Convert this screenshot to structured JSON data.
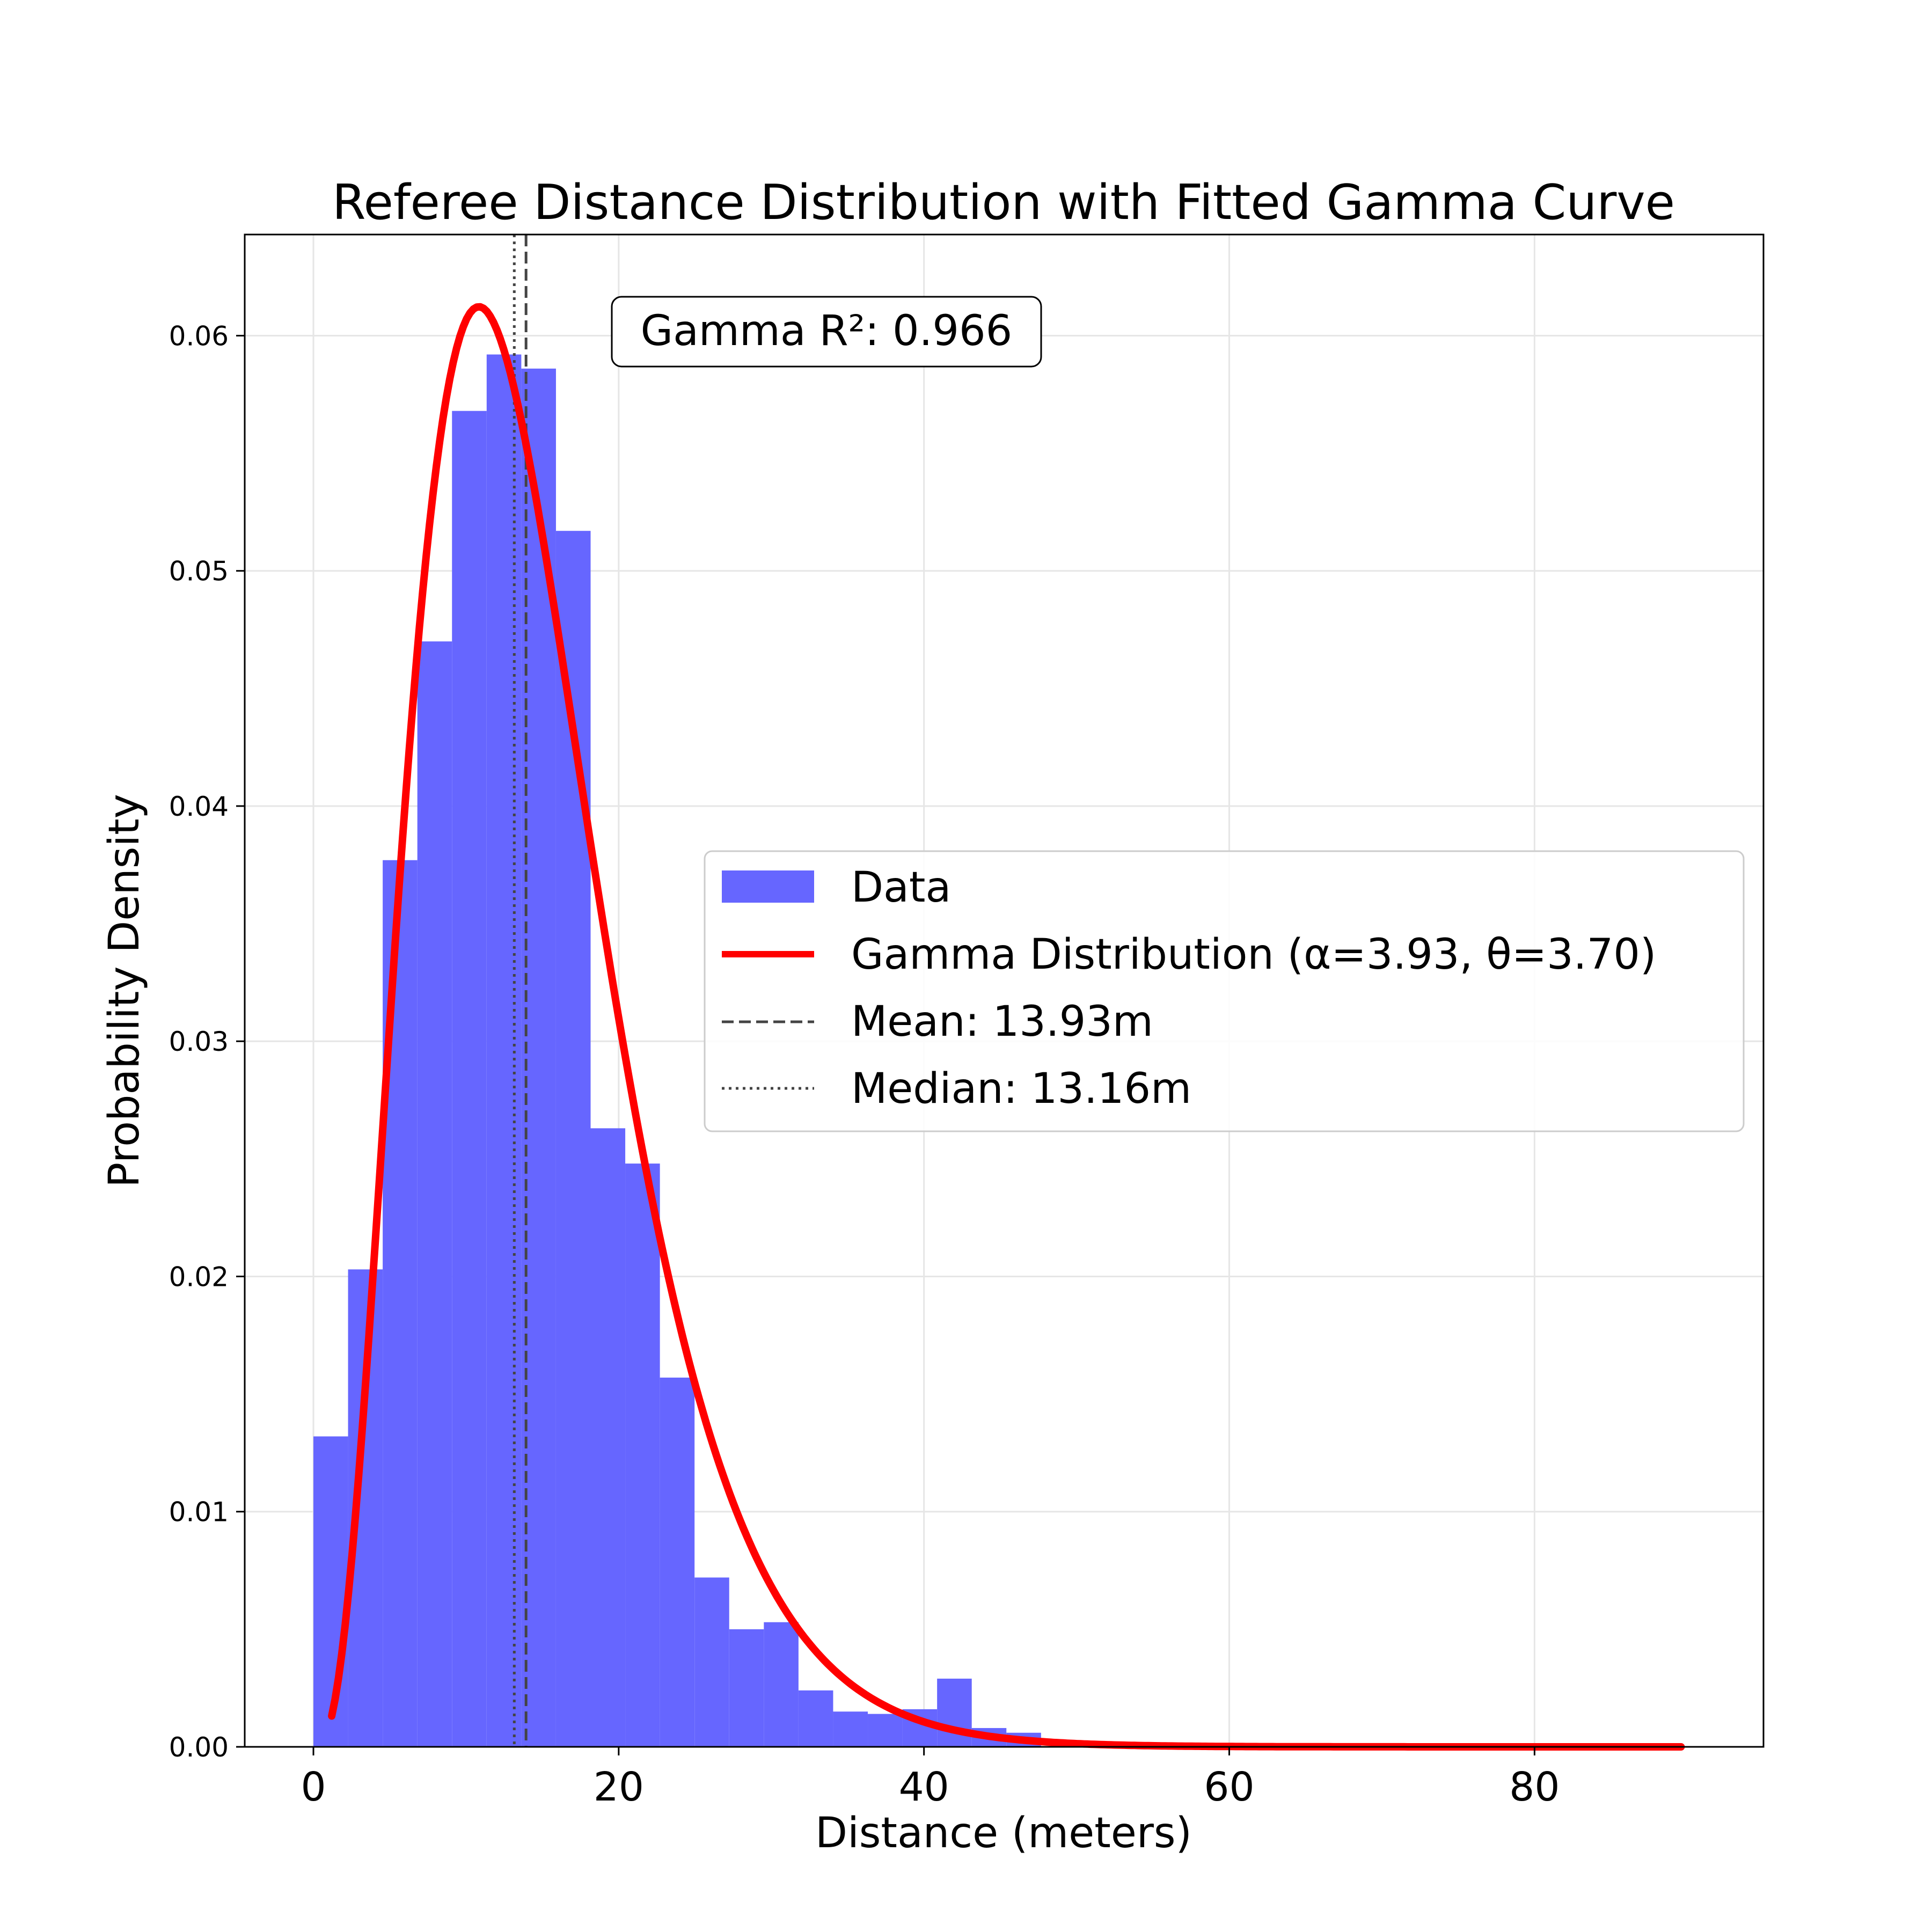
{
  "chart_data": {
    "type": "bar",
    "title": "Referee Distance Distribution with Fitted Gamma Curve",
    "xlabel": "Distance (meters)",
    "ylabel": "Probability Density",
    "xlim": [
      -4.5,
      95
    ],
    "ylim": [
      0,
      0.0643
    ],
    "xticks": [
      0,
      20,
      40,
      60,
      80
    ],
    "xtick_labels": [
      "0",
      "20",
      "40",
      "60",
      "80"
    ],
    "yticks": [
      0.0,
      0.01,
      0.02,
      0.03,
      0.04,
      0.05,
      0.06
    ],
    "ytick_labels": [
      "0.00",
      "0.01",
      "0.02",
      "0.03",
      "0.04",
      "0.05",
      "0.06"
    ],
    "grid": true,
    "legend_position": "center-right",
    "histogram": {
      "name": "Data",
      "color": "#6666ff",
      "bin_edges": [
        0.0,
        2.27,
        4.54,
        6.81,
        9.08,
        11.35,
        13.62,
        15.89,
        18.16,
        20.43,
        22.7,
        24.97,
        27.24,
        29.51,
        31.78,
        34.05,
        36.32,
        38.59,
        40.86,
        43.13,
        45.4,
        47.67
      ],
      "values": [
        0.0132,
        0.0203,
        0.0377,
        0.047,
        0.0568,
        0.0592,
        0.0586,
        0.0517,
        0.0263,
        0.0248,
        0.0157,
        0.0072,
        0.005,
        0.0053,
        0.0024,
        0.0015,
        0.0014,
        0.0016,
        0.0029,
        0.0008,
        0.0006
      ]
    },
    "curve": {
      "name": "Gamma Distribution (α=3.93, θ=3.70)",
      "color": "#ff0000",
      "alpha": 3.93,
      "theta": 3.7,
      "x_range": [
        1.2,
        89.6
      ]
    },
    "vlines": [
      {
        "name": "Mean: 13.93m",
        "x": 13.93,
        "style": "dashed",
        "color": "#444444"
      },
      {
        "name": "Median: 13.16m",
        "x": 13.16,
        "style": "dotted",
        "color": "#444444"
      }
    ],
    "annotation": {
      "text": "Gamma R²: 0.966",
      "x": 13.6,
      "y": 0.0605
    }
  }
}
